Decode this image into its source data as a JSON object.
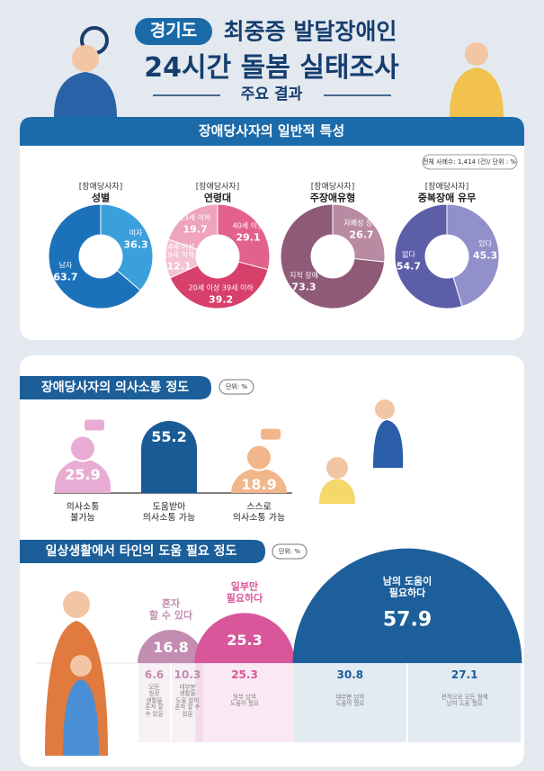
{
  "header": {
    "region": "경기도",
    "title_line1": "최중증 발달장애인",
    "title_line2": "24시간 돌봄 실태조사",
    "subtitle": "주요 결과"
  },
  "sections": [
    {
      "title": "장애당사자의 일반적 특성",
      "note": "전체 사례수: 1,414 (건)/ 단위 : %"
    },
    {
      "title": "장애당사자의 의사소통 정도",
      "note": "단위: %"
    },
    {
      "title": "일상생활에서 타인의 도움 필요 정도",
      "note": "단위: %"
    }
  ],
  "chart_data": [
    {
      "type": "pie",
      "donut": true,
      "subtitle": "[장애당사자]",
      "title": "성별",
      "categories": [
        "여자",
        "남자"
      ],
      "values": [
        36.3,
        63.7
      ],
      "colors": [
        "#3aa0dc",
        "#1c72ba"
      ]
    },
    {
      "type": "pie",
      "donut": true,
      "subtitle": "[장애당사자]",
      "title": "연령대",
      "categories": [
        "40세 이상",
        "20세 이상 39세 이하",
        "14세 이상\n19세 이하",
        "13세 이하"
      ],
      "values": [
        29.1,
        39.2,
        12.1,
        19.7
      ],
      "colors": [
        "#e3628c",
        "#d6406a",
        "#f4c2d1",
        "#efa3bd"
      ]
    },
    {
      "type": "pie",
      "donut": true,
      "subtitle": "[장애당사자]",
      "title": "주장애유형",
      "categories": [
        "자폐성 장애",
        "지적 장애"
      ],
      "values": [
        26.7,
        73.3
      ],
      "colors": [
        "#b98ba2",
        "#8f5a78"
      ]
    },
    {
      "type": "pie",
      "donut": true,
      "subtitle": "[장애당사자]",
      "title": "중복장애 유무",
      "categories": [
        "있다",
        "없다"
      ],
      "values": [
        45.3,
        54.7
      ],
      "colors": [
        "#9190cb",
        "#5c5ea8"
      ]
    },
    {
      "type": "bar",
      "categories": [
        "의사소통\n불가능",
        "도움받아\n의사소통 가능",
        "스스로\n의사소통 가능"
      ],
      "values": [
        25.9,
        55.2,
        18.9
      ],
      "colors": [
        "#e8acd4",
        "#1a5b96",
        "#f2b68b"
      ]
    },
    {
      "type": "semicircle",
      "series": [
        {
          "name": "혼자\n할 수 있다",
          "value": 16.8,
          "color": "#c28db1",
          "parts": [
            {
              "value": 6.6,
              "label": "모든\n일상\n생활을\n혼자 할\n수 있음"
            },
            {
              "value": 10.3,
              "label": "대부분\n생활을\n도움 없이\n혼자 할 수\n있음"
            }
          ]
        },
        {
          "name": "일부만\n필요하다",
          "value": 25.3,
          "color": "#d9569a",
          "parts": [
            {
              "value": 25.3,
              "label": "일부 남의\n도움이 필요"
            }
          ]
        },
        {
          "name": "남의 도움이\n필요하다",
          "value": 57.9,
          "color": "#1c5f9b",
          "parts": [
            {
              "value": 30.8,
              "label": "대부분 남의\n도움이 필요"
            },
            {
              "value": 27.1,
              "label": "전적으로 모든 일에\n남의 도움 필요"
            }
          ]
        }
      ]
    }
  ]
}
